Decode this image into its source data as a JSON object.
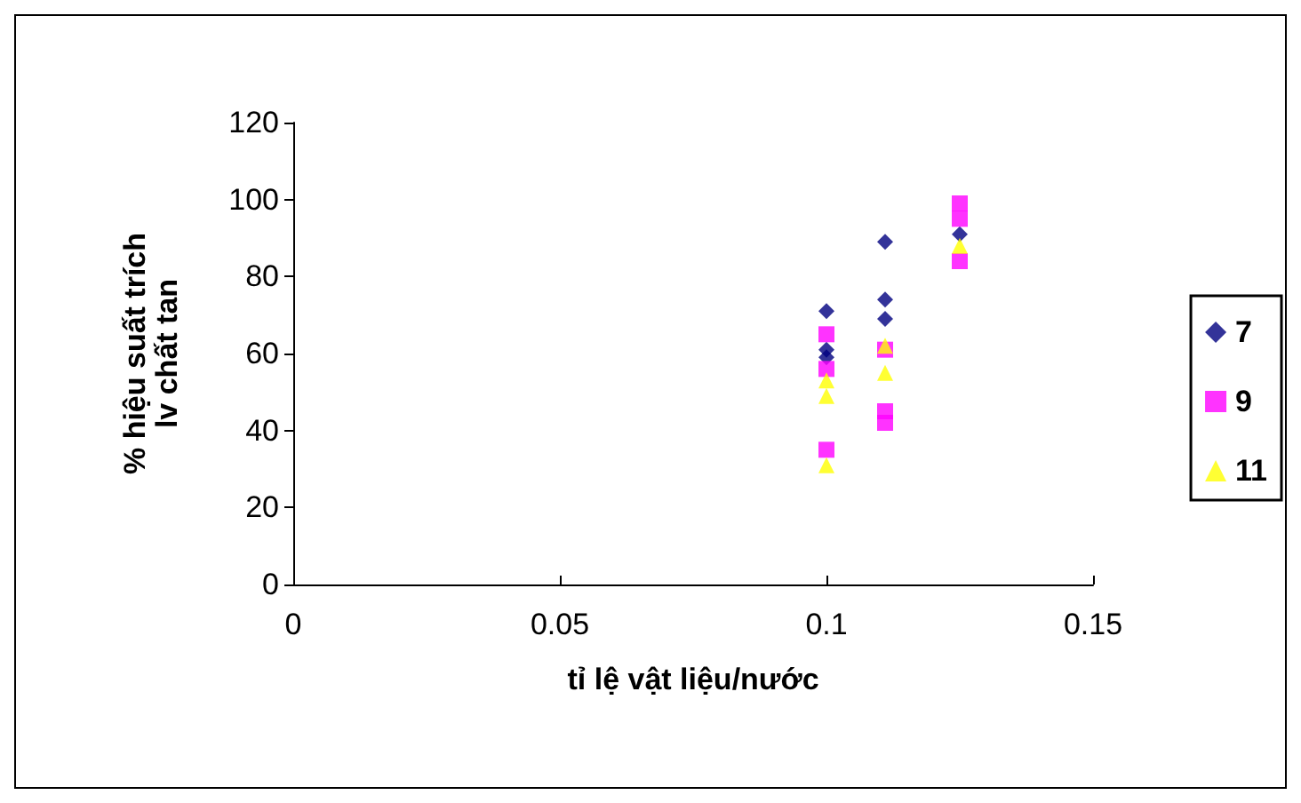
{
  "chart_data": {
    "type": "scatter",
    "xlabel": "tỉ lệ vật liệu/nước",
    "ylabel": "% hiệu suất trích\nlv chất tan",
    "xlim": [
      0,
      0.15
    ],
    "xticks": [
      0,
      0.05,
      0.1,
      0.15
    ],
    "ylim": [
      0,
      120
    ],
    "yticks": [
      0,
      20,
      40,
      60,
      80,
      100,
      120
    ],
    "grid": false,
    "legend": "right",
    "series": [
      {
        "name": "7",
        "color": "#000080",
        "marker": "diamond",
        "x": [
          0.1,
          0.1,
          0.1,
          0.111,
          0.111,
          0.111,
          0.125
        ],
        "values": [
          71,
          61,
          59,
          89,
          74,
          69,
          91
        ]
      },
      {
        "name": "9",
        "color": "#ff00ff",
        "marker": "square",
        "x": [
          0.1,
          0.1,
          0.1,
          0.111,
          0.111,
          0.111,
          0.125,
          0.125,
          0.125
        ],
        "values": [
          65,
          56,
          35,
          61,
          45,
          42,
          99,
          95,
          84
        ]
      },
      {
        "name": "11",
        "color": "#ffff00",
        "marker": "triangle",
        "x": [
          0.1,
          0.1,
          0.1,
          0.111,
          0.111,
          0.125
        ],
        "values": [
          53,
          49,
          31,
          62,
          55,
          88
        ]
      }
    ]
  }
}
